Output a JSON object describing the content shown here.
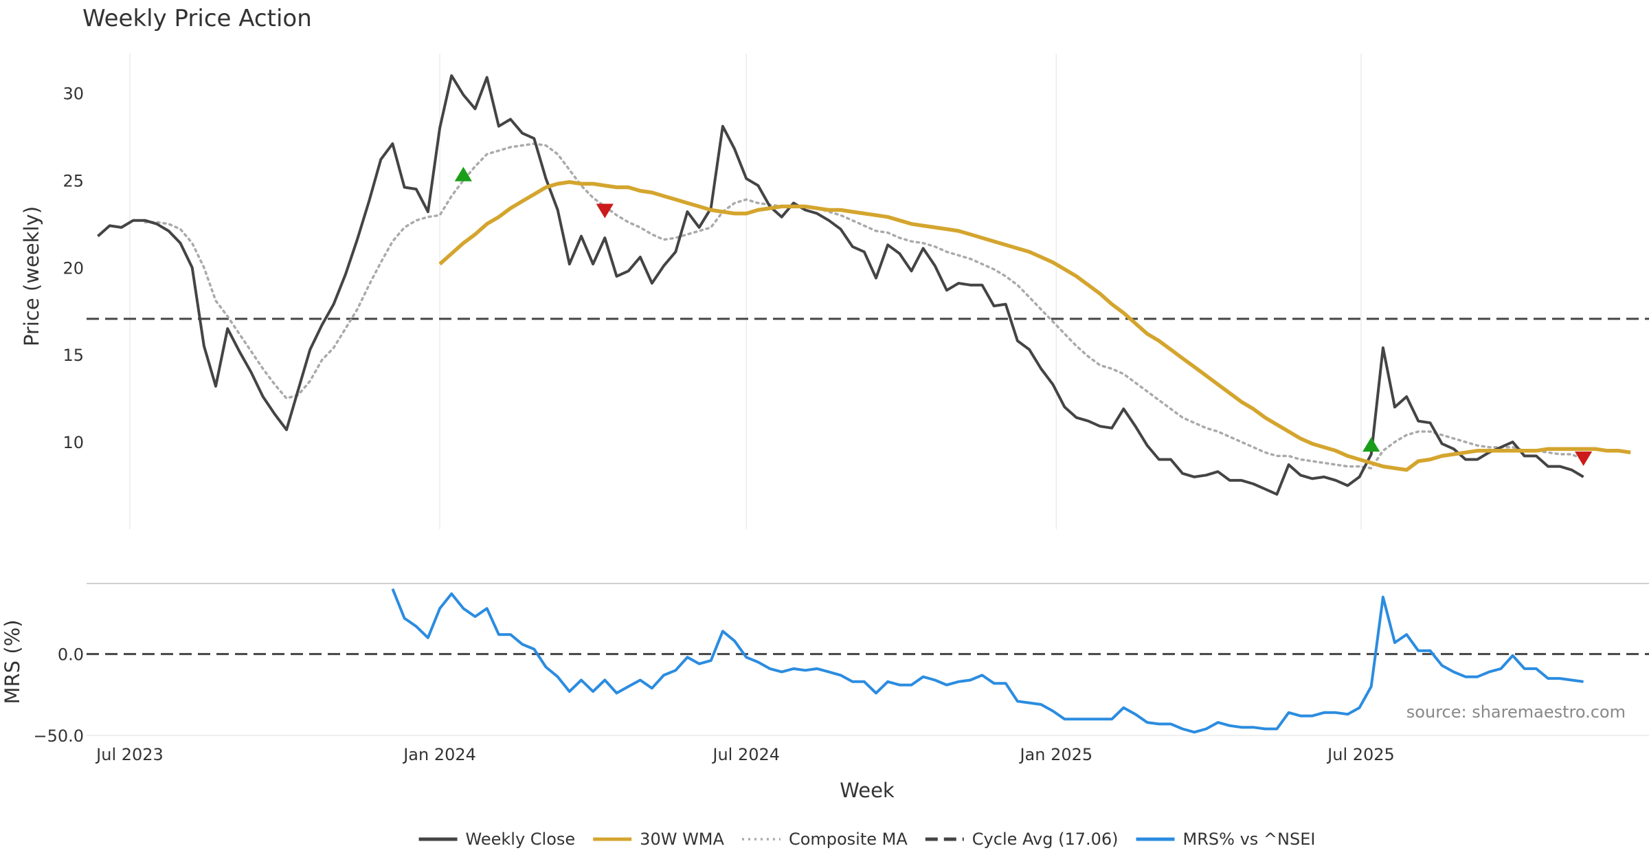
{
  "chart_data": [
    {
      "type": "line",
      "title": "Weekly Price Action",
      "ylabel": "Price (weekly)",
      "ylim": [
        5,
        32.5
      ],
      "yticks": [
        "10",
        "15",
        "20",
        "25",
        "30"
      ],
      "grid": "vertical",
      "x_start": "2023-06-12",
      "x_interval_days": 7,
      "series": [
        {
          "name": "Weekly Close",
          "color": "#444444",
          "style": "solid",
          "values": [
            21.8,
            22.4,
            22.3,
            22.7,
            22.7,
            22.5,
            22.1,
            21.4,
            20.0,
            15.5,
            13.2,
            16.5,
            15.2,
            14.0,
            12.6,
            11.6,
            10.7,
            13.0,
            15.3,
            16.7,
            17.9,
            19.6,
            21.6,
            23.8,
            26.2,
            27.1,
            24.6,
            24.5,
            23.2,
            28.0,
            31.0,
            29.9,
            29.1,
            30.9,
            28.1,
            28.5,
            27.7,
            27.4,
            25.1,
            23.3,
            20.2,
            21.8,
            20.2,
            21.7,
            19.5,
            19.8,
            20.6,
            19.1,
            20.1,
            20.9,
            23.2,
            22.3,
            23.4,
            28.1,
            26.8,
            25.1,
            24.7,
            23.5,
            22.9,
            23.7,
            23.3,
            23.1,
            22.7,
            22.2,
            21.2,
            20.9,
            19.4,
            21.3,
            20.8,
            19.8,
            21.1,
            20.1,
            18.7,
            19.1,
            19.0,
            19.0,
            17.8,
            17.9,
            15.8,
            15.3,
            14.2,
            13.3,
            12.0,
            11.4,
            11.2,
            10.9,
            10.8,
            11.9,
            10.9,
            9.8,
            9.0,
            9.0,
            8.2,
            8.0,
            8.1,
            8.3,
            7.8,
            7.8,
            7.6,
            7.3,
            7.0,
            8.7,
            8.1,
            7.9,
            8.0,
            7.8,
            7.5,
            8.0,
            9.3,
            15.4,
            12.0,
            12.6,
            11.2,
            11.1,
            9.9,
            9.6,
            9.0,
            9.0,
            9.4,
            9.7,
            10.0,
            9.2,
            9.2,
            8.6,
            8.6,
            8.4,
            8.0
          ]
        },
        {
          "name": "30W WMA",
          "color": "#d4a52e",
          "style": "solid",
          "start_index": 29,
          "values": [
            20.2,
            20.8,
            21.4,
            21.9,
            22.5,
            22.9,
            23.4,
            23.8,
            24.2,
            24.6,
            24.8,
            24.9,
            24.8,
            24.8,
            24.7,
            24.6,
            24.6,
            24.4,
            24.3,
            24.1,
            23.9,
            23.7,
            23.5,
            23.3,
            23.2,
            23.1,
            23.1,
            23.3,
            23.4,
            23.5,
            23.5,
            23.5,
            23.4,
            23.3,
            23.3,
            23.2,
            23.1,
            23.0,
            22.9,
            22.7,
            22.5,
            22.4,
            22.3,
            22.2,
            22.1,
            21.9,
            21.7,
            21.5,
            21.3,
            21.1,
            20.9,
            20.6,
            20.3,
            19.9,
            19.5,
            19.0,
            18.5,
            17.9,
            17.4,
            16.8,
            16.2,
            15.8,
            15.3,
            14.8,
            14.3,
            13.8,
            13.3,
            12.8,
            12.3,
            11.9,
            11.4,
            11.0,
            10.6,
            10.2,
            9.9,
            9.7,
            9.5,
            9.2,
            9.0,
            8.8,
            8.6,
            8.5,
            8.4,
            8.9,
            9.0,
            9.2,
            9.3,
            9.4,
            9.5,
            9.5,
            9.5,
            9.5,
            9.5,
            9.5,
            9.6,
            9.6,
            9.6,
            9.6,
            9.6,
            9.5,
            9.5,
            9.4
          ]
        },
        {
          "name": "Composite MA",
          "color": "#aaaaaa",
          "style": "dotted",
          "values": [
            null,
            null,
            null,
            null,
            22.6,
            22.6,
            22.5,
            22.2,
            21.4,
            20.0,
            18.1,
            17.2,
            16.2,
            15.2,
            14.2,
            13.3,
            12.5,
            12.7,
            13.5,
            14.7,
            15.4,
            16.5,
            17.6,
            19.0,
            20.3,
            21.5,
            22.3,
            22.7,
            22.9,
            23.0,
            24.1,
            25.0,
            25.8,
            26.5,
            26.7,
            26.9,
            27.0,
            27.1,
            27.0,
            26.5,
            25.6,
            24.7,
            24.0,
            23.5,
            23.0,
            22.6,
            22.3,
            21.9,
            21.6,
            21.7,
            21.9,
            22.1,
            22.3,
            23.2,
            23.7,
            23.9,
            23.7,
            23.6,
            23.5,
            23.5,
            23.5,
            23.4,
            23.2,
            23.0,
            22.7,
            22.4,
            22.1,
            22.0,
            21.7,
            21.5,
            21.4,
            21.2,
            20.9,
            20.7,
            20.5,
            20.2,
            19.9,
            19.5,
            19.0,
            18.3,
            17.6,
            16.9,
            16.2,
            15.5,
            14.9,
            14.4,
            14.2,
            13.9,
            13.4,
            12.9,
            12.4,
            11.9,
            11.4,
            11.1,
            10.8,
            10.6,
            10.3,
            10.0,
            9.7,
            9.4,
            9.2,
            9.2,
            9.0,
            8.9,
            8.8,
            8.7,
            8.6,
            8.6,
            8.5,
            9.5,
            10.0,
            10.4,
            10.6,
            10.6,
            10.4,
            10.2,
            10.0,
            9.8,
            9.7,
            9.7,
            9.7,
            9.5,
            9.5,
            9.4,
            9.3,
            9.3,
            9.0
          ]
        },
        {
          "name": "Cycle Avg (17.06)",
          "color": "#444444",
          "style": "dashed",
          "value": 17.06
        }
      ],
      "markers": [
        {
          "type": "buy",
          "shape": "triangle-up",
          "color": "#1a9e1a",
          "index": 31,
          "value": 25.3
        },
        {
          "type": "sell",
          "shape": "triangle-down",
          "color": "#cc1a1a",
          "index": 43,
          "value": 23.3
        },
        {
          "type": "buy",
          "shape": "triangle-up",
          "color": "#1a9e1a",
          "index": 108,
          "value": 9.8
        },
        {
          "type": "sell",
          "shape": "triangle-down",
          "color": "#cc1a1a",
          "index": 126,
          "value": 9.1
        }
      ]
    },
    {
      "type": "line",
      "ylabel": "MRS (%)",
      "ylim": [
        -50,
        45
      ],
      "yticks": [
        "0.0",
        "−50.0"
      ],
      "series": [
        {
          "name": "MRS% vs ^NSEI",
          "color": "#2b8ce0",
          "style": "solid",
          "start_index": 25,
          "values": [
            40,
            22,
            17,
            10,
            28,
            37,
            28,
            23,
            28,
            12,
            12,
            6,
            3,
            -8,
            -14,
            -23,
            -16,
            -23,
            -16,
            -24,
            -20,
            -16,
            -21,
            -13,
            -10,
            -2,
            -6,
            -4,
            14,
            8,
            -2,
            -5,
            -9,
            -11,
            -9,
            -10,
            -9,
            -11,
            -13,
            -17,
            -17,
            -24,
            -17,
            -19,
            -19,
            -14,
            -16,
            -19,
            -17,
            -16,
            -13,
            -18,
            -18,
            -29,
            -30,
            -31,
            -35,
            -40,
            -40,
            -40,
            -40,
            -40,
            -33,
            -37,
            -42,
            -43,
            -43,
            -46,
            -48,
            -46,
            -42,
            -44,
            -45,
            -45,
            -46,
            -46,
            -36,
            -38,
            -38,
            -36,
            -36,
            -37,
            -33,
            -20,
            35,
            7,
            12,
            2,
            2,
            -7,
            -11,
            -14,
            -14,
            -11,
            -9,
            -1,
            -9,
            -9,
            -15,
            -15,
            -16,
            -17
          ]
        },
        {
          "name": "zero-line",
          "color": "#444444",
          "style": "dashed",
          "value": 0
        }
      ]
    }
  ],
  "xaxis": {
    "label": "Week",
    "ticks": [
      "Jul 2023",
      "Jan 2024",
      "Jul 2024",
      "Jan 2025",
      "Jul 2025"
    ]
  },
  "source_label": "source: sharemaestro.com",
  "legend": {
    "position": "bottom-center",
    "items": [
      {
        "label": "Weekly Close",
        "color": "#444444",
        "style": "solid"
      },
      {
        "label": "30W WMA",
        "color": "#d4a52e",
        "style": "solid"
      },
      {
        "label": "Composite MA",
        "color": "#aaaaaa",
        "style": "dotted"
      },
      {
        "label": "Cycle Avg (17.06)",
        "color": "#444444",
        "style": "dashed"
      },
      {
        "label": "MRS% vs ^NSEI",
        "color": "#2b8ce0",
        "style": "solid"
      }
    ]
  }
}
